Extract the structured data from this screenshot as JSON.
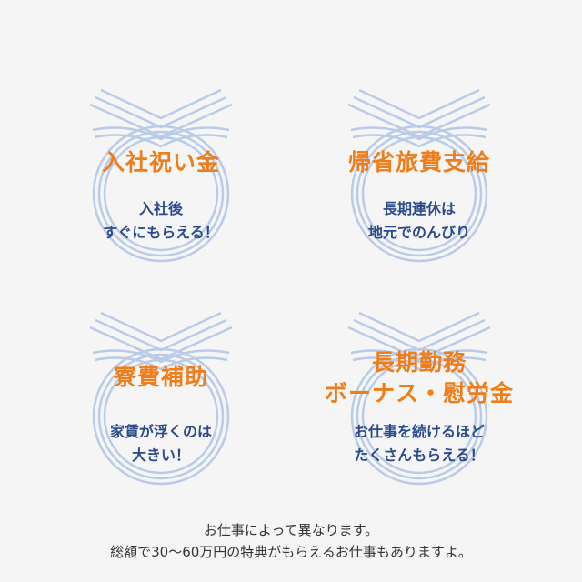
{
  "benefits": [
    {
      "title": "入社祝い金",
      "description": [
        "入社後",
        "すぐにもらえる！"
      ]
    },
    {
      "title": "帰省旅費支給",
      "description": [
        "長期連休は",
        "地元でのんびり"
      ]
    },
    {
      "title": "寮費補助",
      "description": [
        "家賃が浮くのは",
        "大きい！"
      ]
    },
    {
      "title": "長期勤務\nボーナス・慰労金",
      "title_lines": [
        "長期勤務",
        "ボーナス・慰労金"
      ],
      "description": [
        "お仕事を続けるほど",
        "たくさんもらえる！"
      ]
    }
  ],
  "footer": {
    "line1": "お仕事によって異なります。",
    "line2": "総額で30〜60万円の特典がもらえるお仕事もありますよ。"
  },
  "colors": {
    "accent": "#ef7d1a",
    "description": "#2a4a8c",
    "rope": "#b9cbe8"
  },
  "icons": [
    "mizuhiki-knot-icon"
  ]
}
